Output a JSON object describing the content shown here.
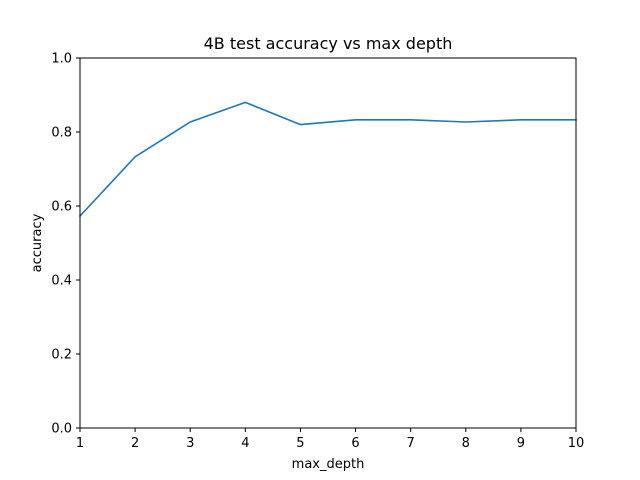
{
  "chart_data": {
    "type": "line",
    "title": "4B test accuracy vs max depth",
    "xlabel": "max_depth",
    "ylabel": "accuracy",
    "xlim": [
      1,
      10
    ],
    "ylim": [
      0.0,
      1.0
    ],
    "xticks": [
      "1",
      "2",
      "3",
      "4",
      "5",
      "6",
      "7",
      "8",
      "9",
      "10"
    ],
    "yticks": [
      "0.0",
      "0.2",
      "0.4",
      "0.6",
      "0.8",
      "1.0"
    ],
    "grid": false,
    "series": [
      {
        "x": [
          1,
          2,
          3,
          4,
          5,
          6,
          7,
          8,
          9,
          10
        ],
        "values": [
          0.573,
          0.733,
          0.827,
          0.88,
          0.82,
          0.833,
          0.833,
          0.827,
          0.833,
          0.833
        ],
        "color": "#1f77b4"
      }
    ]
  }
}
